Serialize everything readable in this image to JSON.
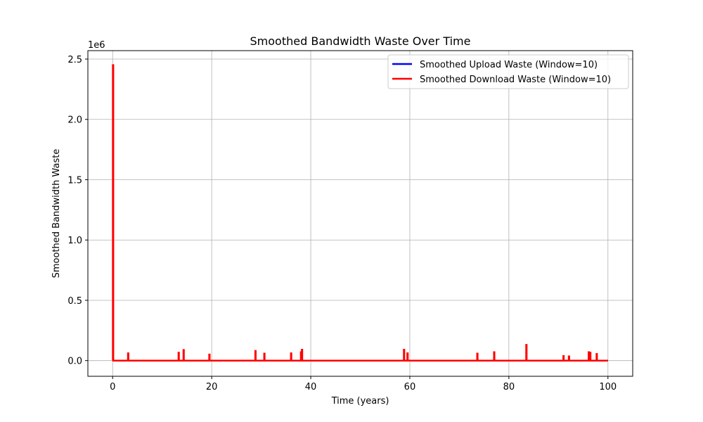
{
  "chart_data": {
    "type": "line",
    "title": "Smoothed Bandwidth Waste Over Time",
    "xlabel": "Time (years)",
    "ylabel": "Smoothed Bandwidth Waste",
    "y_offset_text": "1e6",
    "xlim": [
      -5,
      105
    ],
    "ylim": [
      -130000,
      2570000
    ],
    "x_ticks": [
      0,
      20,
      40,
      60,
      80,
      100
    ],
    "x_tick_labels": [
      "0",
      "20",
      "40",
      "60",
      "80",
      "100"
    ],
    "y_ticks": [
      0,
      500000,
      1000000,
      1500000,
      2000000,
      2500000
    ],
    "y_tick_labels": [
      "0.0",
      "0.5",
      "1.0",
      "1.5",
      "2.0",
      "2.5"
    ],
    "grid": true,
    "legend_position": "top-right",
    "x_start": 0,
    "x_end": 100,
    "baseline": 0,
    "series": [
      {
        "name": "Smoothed Upload Waste (Window=10)",
        "color": "#0000ff",
        "spikes": []
      },
      {
        "name": "Smoothed Download Waste (Window=10)",
        "color": "#ff0000",
        "spikes": [
          {
            "x": 0.05,
            "y": 2450000
          },
          {
            "x": 3.1,
            "y": 60000
          },
          {
            "x": 13.3,
            "y": 65000
          },
          {
            "x": 14.3,
            "y": 88000
          },
          {
            "x": 19.5,
            "y": 50000
          },
          {
            "x": 28.8,
            "y": 80000
          },
          {
            "x": 30.6,
            "y": 58000
          },
          {
            "x": 36.0,
            "y": 60000
          },
          {
            "x": 38.0,
            "y": 70000
          },
          {
            "x": 38.2,
            "y": 90000
          },
          {
            "x": 58.8,
            "y": 90000
          },
          {
            "x": 59.5,
            "y": 60000
          },
          {
            "x": 73.6,
            "y": 58000
          },
          {
            "x": 77.0,
            "y": 70000
          },
          {
            "x": 83.5,
            "y": 130000
          },
          {
            "x": 91.0,
            "y": 38000
          },
          {
            "x": 92.1,
            "y": 35000
          },
          {
            "x": 96.1,
            "y": 70000
          },
          {
            "x": 96.4,
            "y": 65000
          },
          {
            "x": 97.7,
            "y": 55000
          }
        ]
      }
    ]
  }
}
